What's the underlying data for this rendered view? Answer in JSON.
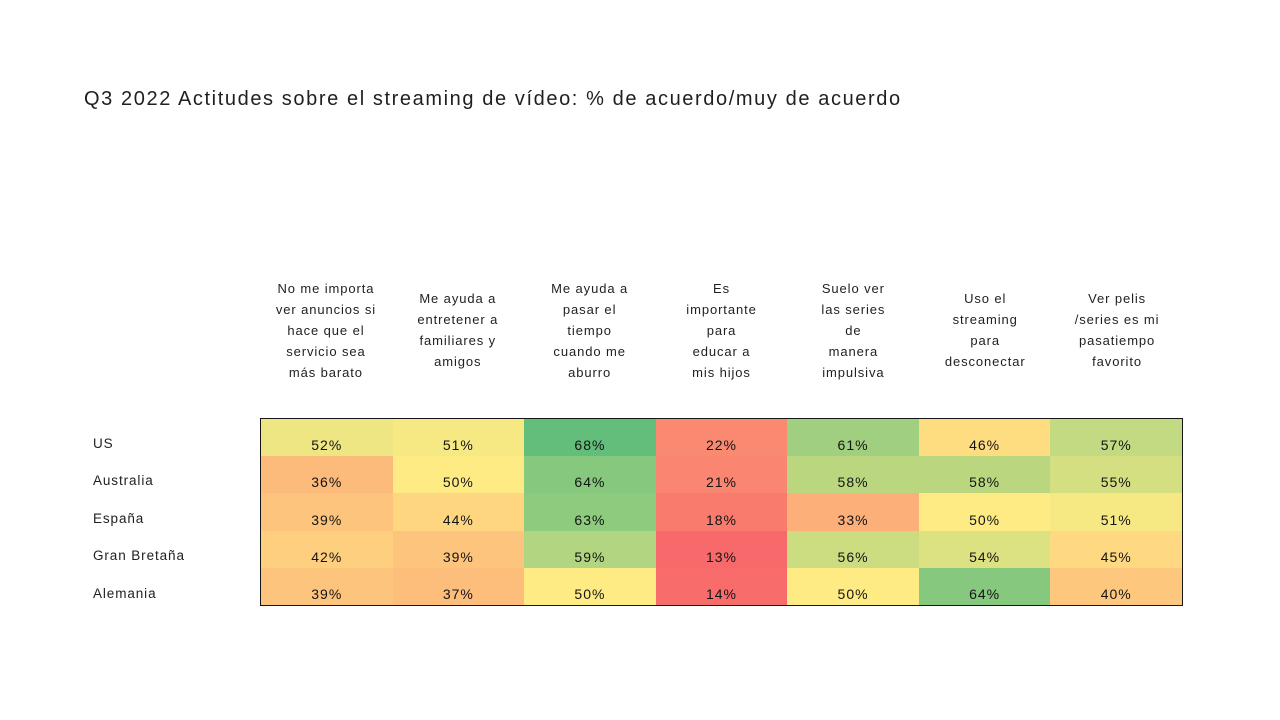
{
  "title": "Q3 2022 Actitudes sobre el streaming de vídeo: % de acuerdo/muy de acuerdo",
  "chart_data": {
    "type": "heatmap",
    "title": "Q3 2022 Actitudes sobre el streaming de vídeo: % de acuerdo/muy de acuerdo",
    "value_unit": "%",
    "columns": [
      "No me importa\nver anuncios si\nhace que el\nservicio sea\nmás barato",
      "Me ayuda a\nentretener a\nfamiliares y\namigos",
      "Me ayuda a\npasar el\ntiempo\ncuando me\naburro",
      "Es\nimportante\npara\neducar a\nmis hijos",
      "Suelo ver\nlas series\nde\nmanera\nimpulsiva",
      "Uso el\nstreaming\npara\ndesconectar",
      "Ver pelis\n/series es mi\npasatiempo\nfavorito"
    ],
    "rows": [
      "US",
      "Australia",
      "España",
      "Gran Bretaña",
      "Alemania"
    ],
    "values": [
      [
        52,
        51,
        68,
        22,
        61,
        46,
        57
      ],
      [
        36,
        50,
        64,
        21,
        58,
        58,
        55
      ],
      [
        39,
        44,
        63,
        18,
        33,
        50,
        51
      ],
      [
        42,
        39,
        59,
        13,
        56,
        54,
        45
      ],
      [
        39,
        37,
        50,
        14,
        50,
        64,
        40
      ]
    ],
    "color_scale": {
      "type": "3-color",
      "min": {
        "value": 13,
        "color": "#F8696B"
      },
      "mid": {
        "value": 50,
        "color": "#FFEB84"
      },
      "max": {
        "value": 68,
        "color": "#63BE7B"
      }
    },
    "grid_border_color": "#161616",
    "text_color": "#1f1f1f"
  }
}
